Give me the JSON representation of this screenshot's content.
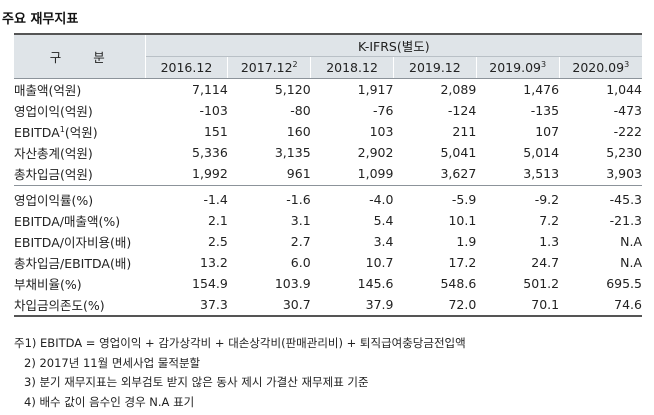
{
  "title": "주요 재무지표",
  "header": {
    "gubun": "구 분",
    "standard": "K-IFRS(별도)",
    "years": [
      {
        "label": "2016.12",
        "sup": ""
      },
      {
        "label": "2017.12",
        "sup": "2"
      },
      {
        "label": "2018.12",
        "sup": ""
      },
      {
        "label": "2019.12",
        "sup": ""
      },
      {
        "label": "2019.09",
        "sup": "3"
      },
      {
        "label": "2020.09",
        "sup": "3"
      }
    ]
  },
  "rows": [
    {
      "label": "매출액(억원)",
      "sup": "",
      "values": [
        "7,114",
        "5,120",
        "1,917",
        "2,089",
        "1,476",
        "1,044"
      ]
    },
    {
      "label": "영업이익(억원)",
      "sup": "",
      "values": [
        "-103",
        "-80",
        "-76",
        "-124",
        "-135",
        "-473"
      ]
    },
    {
      "label": "EBITDA",
      "sup": "1",
      "label_suffix": "(억원)",
      "values": [
        "151",
        "160",
        "103",
        "211",
        "107",
        "-222"
      ]
    },
    {
      "label": "자산총계(억원)",
      "sup": "",
      "values": [
        "5,336",
        "3,135",
        "2,902",
        "5,041",
        "5,014",
        "5,230"
      ]
    },
    {
      "label": "총차입금(억원)",
      "sup": "",
      "values": [
        "1,992",
        "961",
        "1,099",
        "3,627",
        "3,513",
        "3,903"
      ]
    },
    {
      "label": "영업이익률(%)",
      "sup": "",
      "values": [
        "-1.4",
        "-1.6",
        "-4.0",
        "-5.9",
        "-9.2",
        "-45.3"
      ]
    },
    {
      "label": "EBITDA/매출액(%)",
      "sup": "",
      "values": [
        "2.1",
        "3.1",
        "5.4",
        "10.1",
        "7.2",
        "-21.3"
      ]
    },
    {
      "label": "EBITDA/이자비용(배)",
      "sup": "",
      "values": [
        "2.5",
        "2.7",
        "3.4",
        "1.9",
        "1.3",
        "N.A"
      ]
    },
    {
      "label": "총차입금/EBITDA(배)",
      "sup": "",
      "values": [
        "13.2",
        "6.0",
        "10.7",
        "17.2",
        "24.7",
        "N.A"
      ]
    },
    {
      "label": "부채비율(%)",
      "sup": "",
      "values": [
        "154.9",
        "103.9",
        "145.6",
        "548.6",
        "501.2",
        "695.5"
      ]
    },
    {
      "label": "차입금의존도(%)",
      "sup": "",
      "values": [
        "37.3",
        "30.7",
        "37.9",
        "72.0",
        "70.1",
        "74.6"
      ]
    }
  ],
  "notes": [
    "주1) EBITDA = 영업이익 + 감가상각비 + 대손상각비(판매관리비) + 퇴직급여충당금전입액",
    "2) 2017년 11월 면세사업 물적분할",
    "3) 분기 재무지표는 외부검토 받지 않은 동사 제시 가결산 재무제표 기준",
    "4) 배수 값이 음수인 경우 N.A 표기"
  ]
}
